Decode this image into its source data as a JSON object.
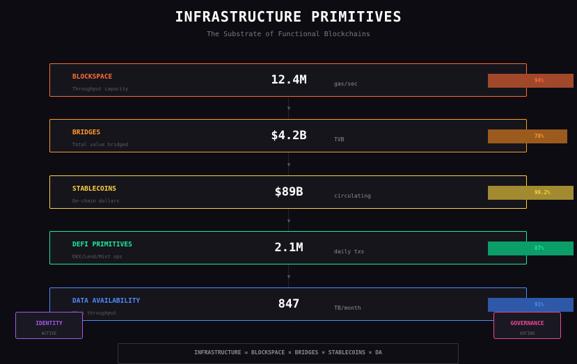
{
  "header": {
    "title": "INFRASTRUCTURE PRIMITIVES",
    "subtitle": "The Substrate of Functional Blockchains"
  },
  "layers": [
    {
      "name": "BLOCKSPACE",
      "description": "Throughput capacity",
      "value": "12.4M",
      "unit": "gas/sec",
      "percent_label": "94%",
      "fill_fraction": 1.0,
      "accent_color": "#ff6b35",
      "bar_color": "#a2482a"
    },
    {
      "name": "BRIDGES",
      "description": "Total value bridged",
      "value": "$4.2B",
      "unit": "TVB",
      "percent_label": "78%",
      "fill_fraction": 0.93,
      "accent_color": "#ff9a2a",
      "bar_color": "#9c5b1e"
    },
    {
      "name": "STABLECOINS",
      "description": "On-chain dollars",
      "value": "$89B",
      "unit": "circulating",
      "percent_label": "99.2%",
      "fill_fraction": 1.0,
      "accent_color": "#ffd23f",
      "bar_color": "#a28a30"
    },
    {
      "name": "DEFI PRIMITIVES",
      "description": "DEX/Lend/Mint ops",
      "value": "2.1M",
      "unit": "daily txs",
      "percent_label": "87%",
      "fill_fraction": 1.0,
      "accent_color": "#1de9a0",
      "bar_color": "#0c9e69"
    },
    {
      "name": "DATA AVAILABILITY",
      "description": "Blob throughput",
      "value": "847",
      "unit": "TB/month",
      "percent_label": "91%",
      "fill_fraction": 1.0,
      "accent_color": "#4f8cff",
      "bar_color": "#2e58a8"
    }
  ],
  "side_panels": {
    "left": {
      "label": "IDENTITY",
      "status": "ACTIVE",
      "accent_color": "#a855f7"
    },
    "right": {
      "label": "GOVERNANCE",
      "status": "VOTING",
      "accent_color": "#ec4899"
    }
  },
  "footer": {
    "formula": "INFRASTRUCTURE = BLOCKSPACE × BRIDGES × STABLECOINS × DA"
  },
  "icons": {
    "connector_arrow": "down-triangle-icon"
  }
}
